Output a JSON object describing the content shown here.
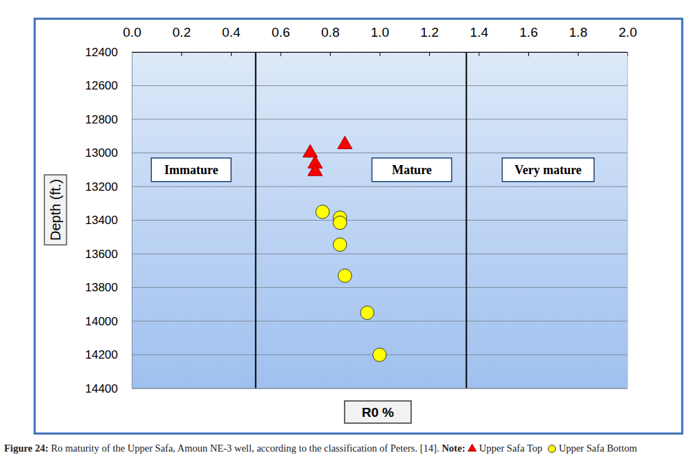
{
  "chart_data": {
    "type": "scatter",
    "x_label": "R0 %",
    "y_label": "Depth (ft.)",
    "xlim": [
      0,
      2
    ],
    "xticks": [
      {
        "value": 0,
        "label": "0.0"
      },
      {
        "value": 0.2,
        "label": "0.2"
      },
      {
        "value": 0.4,
        "label": "0.4"
      },
      {
        "value": 0.6,
        "label": "0.6"
      },
      {
        "value": 0.8,
        "label": "0.8"
      },
      {
        "value": 1,
        "label": "1.0"
      },
      {
        "value": 1.2,
        "label": "1.2"
      },
      {
        "value": 1.4,
        "label": "1.4"
      },
      {
        "value": 1.6,
        "label": "1.6"
      },
      {
        "value": 1.8,
        "label": "1.8"
      },
      {
        "value": 2,
        "label": "2.0"
      }
    ],
    "ylim": [
      12400,
      14400
    ],
    "yticks": [
      12400,
      12600,
      12800,
      13000,
      13200,
      13400,
      13600,
      13800,
      14000,
      14200,
      14400
    ],
    "grid": true,
    "boundaries": [
      0.5,
      1.35
    ],
    "zones": [
      "Immature",
      "Mature",
      "Very mature"
    ],
    "series": [
      {
        "name": "Upper Safa Top",
        "color": "#ff0000",
        "marker": "triangle",
        "x": [
          0.86,
          0.72,
          0.74,
          0.74
        ],
        "values": [
          12950,
          13000,
          13065,
          13110
        ]
      },
      {
        "name": "Upper Safa Bottom",
        "color": "#ffff00",
        "marker": "circle",
        "x": [
          0.77,
          0.84,
          0.84,
          0.84,
          0.86,
          0.95,
          1.0
        ],
        "values": [
          13350,
          13385,
          13415,
          13545,
          13730,
          13950,
          14200
        ]
      }
    ],
    "caption": {
      "label": "Figure 24:",
      "text": "Ro maturity of the Upper Safa, Amoun NE-3 well, according to the classification of Peters. [14].",
      "note": "Note:"
    }
  }
}
